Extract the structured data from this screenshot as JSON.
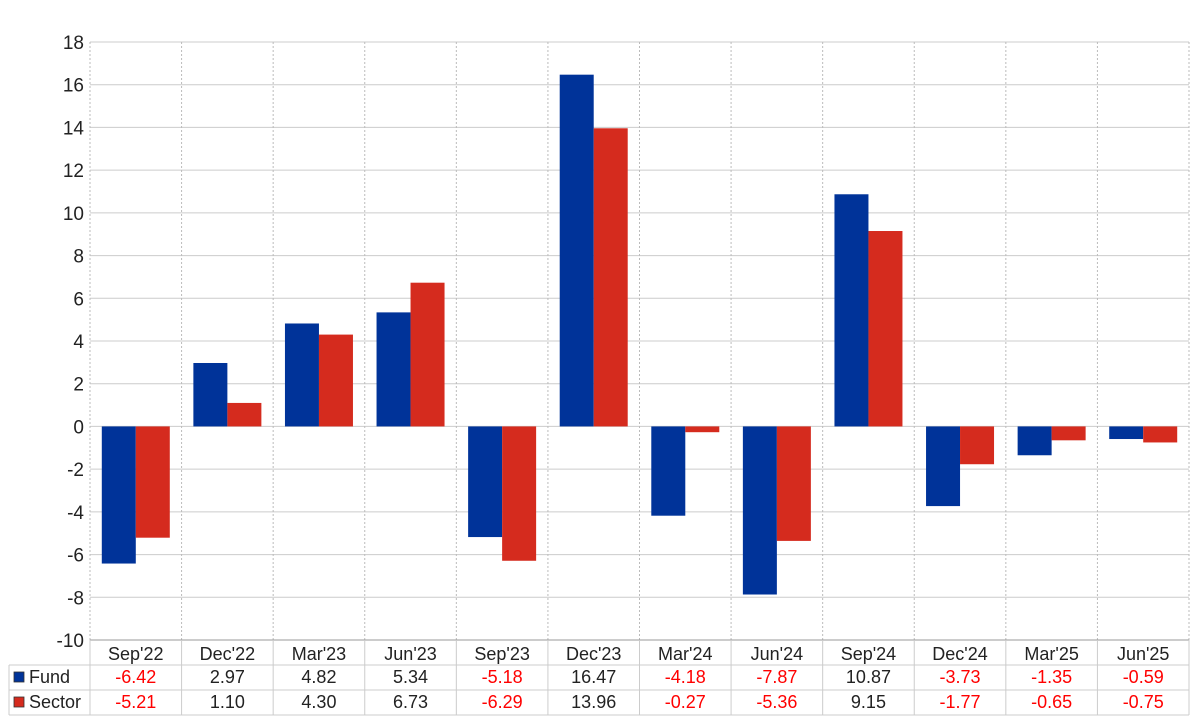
{
  "chart_data": {
    "type": "bar",
    "categories": [
      "Sep'22",
      "Dec'22",
      "Mar'23",
      "Jun'23",
      "Sep'23",
      "Dec'23",
      "Mar'24",
      "Jun'24",
      "Sep'24",
      "Dec'24",
      "Mar'25",
      "Jun'25"
    ],
    "series": [
      {
        "name": "Fund",
        "color": "#003399",
        "values": [
          -6.42,
          2.97,
          4.82,
          5.34,
          -5.18,
          16.47,
          -4.18,
          -7.87,
          10.87,
          -3.73,
          -1.35,
          -0.59
        ],
        "labels": [
          "-6.42",
          "2.97",
          "4.82",
          "5.34",
          "-5.18",
          "16.47",
          "-4.18",
          "-7.87",
          "10.87",
          "-3.73",
          "-1.35",
          "-0.59"
        ]
      },
      {
        "name": "Sector",
        "color": "#d52b1e",
        "values": [
          -5.21,
          1.1,
          4.3,
          6.73,
          -6.29,
          13.96,
          -0.27,
          -5.36,
          9.15,
          -1.77,
          -0.65,
          -0.75
        ],
        "labels": [
          "-5.21",
          "1.10",
          "4.30",
          "6.73",
          "-6.29",
          "13.96",
          "-0.27",
          "-5.36",
          "9.15",
          "-1.77",
          "-0.65",
          "-0.75"
        ]
      }
    ],
    "ylim": [
      -10,
      18
    ],
    "yticks": [
      "-10",
      "-8",
      "-6",
      "-4",
      "-2",
      "0",
      "2",
      "4",
      "6",
      "8",
      "10",
      "12",
      "14",
      "16",
      "18"
    ],
    "grid": true,
    "legend": "table-below",
    "negative_label_color": "#ff0000",
    "positive_label_color": "#222222"
  }
}
